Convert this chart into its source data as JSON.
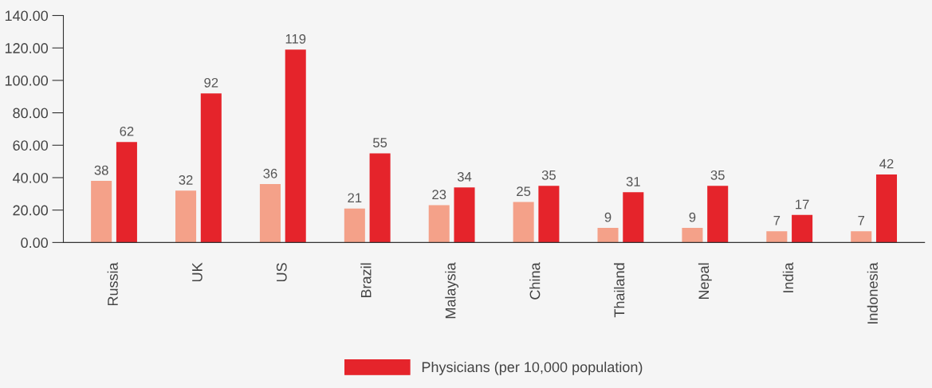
{
  "chart_data": {
    "type": "bar",
    "categories": [
      "Russia",
      "UK",
      "US",
      "Brazil",
      "Malaysia",
      "China",
      "Thailand",
      "Nepal",
      "India",
      "Indonesia"
    ],
    "series": [
      {
        "color": "#f4a189",
        "values": [
          38,
          32,
          36,
          21,
          23,
          25,
          9,
          9,
          7,
          7
        ]
      },
      {
        "name": "Physicians (per 10,000 population)",
        "color": "#e5242b",
        "values": [
          62,
          92,
          119,
          55,
          34,
          35,
          31,
          35,
          17,
          42
        ]
      }
    ],
    "data_labels": true,
    "ylim": [
      0,
      140
    ],
    "yticks": [
      {
        "value": 0,
        "label": "0.00"
      },
      {
        "value": 20,
        "label": "20.00"
      },
      {
        "value": 40,
        "label": "40.00"
      },
      {
        "value": 60,
        "label": "60.00"
      },
      {
        "value": 80,
        "label": "80.00"
      },
      {
        "value": 100,
        "label": "100.00"
      },
      {
        "value": 120,
        "label": "120.00"
      },
      {
        "value": 140,
        "label": "140.00"
      }
    ],
    "grid": false,
    "legend": "bottom"
  }
}
